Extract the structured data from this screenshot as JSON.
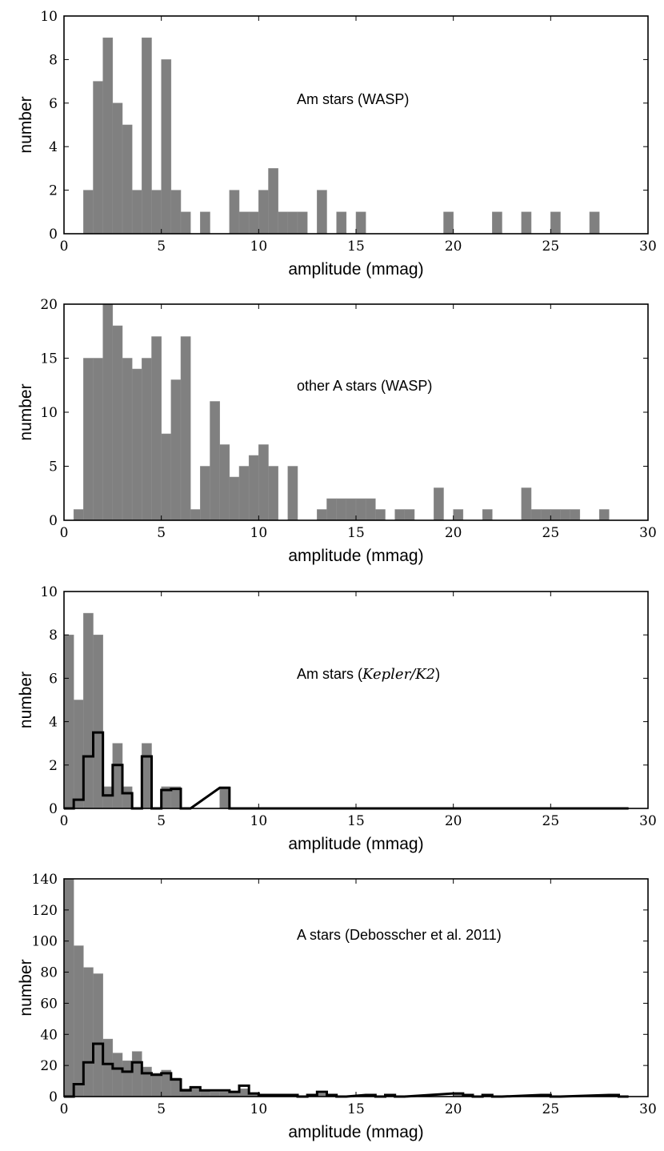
{
  "chart_data": [
    {
      "type": "bar",
      "title": "",
      "annotation": "Am stars (WASP)",
      "xlabel": "amplitude (mmag)",
      "ylabel": "number",
      "xlim": [
        0,
        30
      ],
      "ylim": [
        0,
        10
      ],
      "xticks": [
        0,
        5,
        10,
        15,
        20,
        25,
        30
      ],
      "yticks": [
        0,
        2,
        4,
        6,
        8,
        10
      ],
      "bin_width": 0.5,
      "series": [
        {
          "bins": [
            [
              1.0,
              2
            ],
            [
              1.5,
              7
            ],
            [
              2.0,
              9
            ],
            [
              2.5,
              6
            ],
            [
              3.0,
              5
            ],
            [
              3.5,
              2
            ],
            [
              4.0,
              9
            ],
            [
              4.5,
              2
            ],
            [
              5.0,
              8
            ],
            [
              5.5,
              2
            ],
            [
              6.0,
              1
            ],
            [
              7.0,
              1
            ],
            [
              8.5,
              2
            ],
            [
              9.0,
              1
            ],
            [
              9.5,
              1
            ],
            [
              10.0,
              2
            ],
            [
              10.5,
              3
            ],
            [
              11.0,
              1
            ],
            [
              11.5,
              1
            ],
            [
              12.0,
              1
            ],
            [
              13.0,
              2
            ],
            [
              14.0,
              1
            ],
            [
              15.0,
              1
            ],
            [
              19.5,
              1
            ],
            [
              22.0,
              1
            ],
            [
              23.5,
              1
            ],
            [
              25.0,
              1
            ],
            [
              27.0,
              1
            ]
          ]
        }
      ]
    },
    {
      "type": "bar",
      "title": "",
      "annotation": "other A stars (WASP)",
      "xlabel": "amplitude (mmag)",
      "ylabel": "number",
      "xlim": [
        0,
        30
      ],
      "ylim": [
        0,
        20
      ],
      "xticks": [
        0,
        5,
        10,
        15,
        20,
        25,
        30
      ],
      "yticks": [
        0,
        5,
        10,
        15,
        20
      ],
      "bin_width": 0.5,
      "series": [
        {
          "bins": [
            [
              0.5,
              1
            ],
            [
              1.0,
              15
            ],
            [
              1.5,
              15
            ],
            [
              2.0,
              20
            ],
            [
              2.5,
              18
            ],
            [
              3.0,
              15
            ],
            [
              3.5,
              14
            ],
            [
              4.0,
              15
            ],
            [
              4.5,
              17
            ],
            [
              5.0,
              8
            ],
            [
              5.5,
              13
            ],
            [
              6.0,
              17
            ],
            [
              6.5,
              1
            ],
            [
              7.0,
              5
            ],
            [
              7.5,
              11
            ],
            [
              8.0,
              7
            ],
            [
              8.5,
              4
            ],
            [
              9.0,
              5
            ],
            [
              9.5,
              6
            ],
            [
              10.0,
              7
            ],
            [
              10.5,
              5
            ],
            [
              11.5,
              5
            ],
            [
              13.0,
              1
            ],
            [
              13.5,
              2
            ],
            [
              14.0,
              2
            ],
            [
              14.5,
              2
            ],
            [
              15.0,
              2
            ],
            [
              15.5,
              2
            ],
            [
              16.0,
              1
            ],
            [
              17.0,
              1
            ],
            [
              17.5,
              1
            ],
            [
              19.0,
              3
            ],
            [
              20.0,
              1
            ],
            [
              21.5,
              1
            ],
            [
              23.5,
              3
            ],
            [
              24.0,
              1
            ],
            [
              24.5,
              1
            ],
            [
              25.0,
              1
            ],
            [
              25.5,
              1
            ],
            [
              26.0,
              1
            ],
            [
              27.5,
              1
            ]
          ]
        }
      ]
    },
    {
      "type": "bar",
      "title": "",
      "annotation_parts": [
        "Am stars (",
        "Kepler/K2",
        ")"
      ],
      "xlabel": "amplitude (mmag)",
      "ylabel": "number",
      "xlim": [
        0,
        30
      ],
      "ylim": [
        0,
        10
      ],
      "xticks": [
        0,
        5,
        10,
        15,
        20,
        25,
        30
      ],
      "yticks": [
        0,
        2,
        4,
        6,
        8,
        10
      ],
      "bin_width": 0.5,
      "series": [
        {
          "style": "filled",
          "bins": [
            [
              0.0,
              8
            ],
            [
              0.5,
              5
            ],
            [
              1.0,
              9
            ],
            [
              1.5,
              8
            ],
            [
              2.0,
              1
            ],
            [
              2.5,
              3
            ],
            [
              3.0,
              1
            ],
            [
              4.0,
              3
            ],
            [
              5.0,
              1
            ],
            [
              5.5,
              1
            ],
            [
              8.0,
              1
            ]
          ]
        },
        {
          "style": "step",
          "x_end": 29.0,
          "bins": [
            [
              0.0,
              0
            ],
            [
              0.5,
              0.4
            ],
            [
              1.0,
              2.4
            ],
            [
              1.5,
              3.5
            ],
            [
              2.0,
              0.6
            ],
            [
              2.5,
              2.0
            ],
            [
              3.0,
              0.7
            ],
            [
              3.5,
              0
            ],
            [
              4.0,
              2.4
            ],
            [
              4.5,
              0
            ],
            [
              5.0,
              0.85
            ],
            [
              5.5,
              0.9
            ],
            [
              6.0,
              0
            ],
            [
              8.0,
              0.95
            ],
            [
              8.5,
              0
            ]
          ]
        }
      ]
    },
    {
      "type": "bar",
      "title": "",
      "annotation": "A stars (Debosscher et al. 2011)",
      "xlabel": "amplitude (mmag)",
      "ylabel": "number",
      "xlim": [
        0,
        30
      ],
      "ylim": [
        0,
        140
      ],
      "xticks": [
        0,
        5,
        10,
        15,
        20,
        25,
        30
      ],
      "yticks": [
        0,
        20,
        40,
        60,
        80,
        100,
        120,
        140
      ],
      "bin_width": 0.5,
      "series": [
        {
          "style": "filled",
          "bins": [
            [
              0.0,
              140
            ],
            [
              0.5,
              97
            ],
            [
              1.0,
              83
            ],
            [
              1.5,
              79
            ],
            [
              2.0,
              37
            ],
            [
              2.5,
              28
            ],
            [
              3.0,
              23
            ],
            [
              3.5,
              29
            ],
            [
              4.0,
              19
            ],
            [
              4.5,
              15
            ],
            [
              5.0,
              17
            ],
            [
              5.5,
              12
            ],
            [
              6.0,
              5
            ],
            [
              6.5,
              5
            ],
            [
              7.0,
              4
            ],
            [
              7.5,
              3
            ],
            [
              8.0,
              3
            ],
            [
              8.5,
              3
            ],
            [
              9.0,
              5
            ],
            [
              9.5,
              2
            ],
            [
              10.0,
              1
            ],
            [
              10.5,
              1
            ],
            [
              11.0,
              1
            ],
            [
              11.5,
              1
            ],
            [
              12.5,
              1
            ],
            [
              13.0,
              2
            ],
            [
              13.5,
              1
            ],
            [
              15.5,
              1
            ],
            [
              16.5,
              1
            ],
            [
              20.0,
              2
            ],
            [
              20.5,
              1
            ],
            [
              21.5,
              1
            ],
            [
              24.5,
              1
            ],
            [
              28.0,
              1
            ]
          ]
        },
        {
          "style": "step",
          "x_end": 29.0,
          "bins": [
            [
              0.0,
              0
            ],
            [
              0.5,
              8
            ],
            [
              1.0,
              22
            ],
            [
              1.5,
              34
            ],
            [
              2.0,
              21
            ],
            [
              2.5,
              18
            ],
            [
              3.0,
              16
            ],
            [
              3.5,
              22
            ],
            [
              4.0,
              15
            ],
            [
              4.5,
              14
            ],
            [
              5.0,
              15
            ],
            [
              5.5,
              11
            ],
            [
              6.0,
              4
            ],
            [
              6.5,
              6
            ],
            [
              7.0,
              4
            ],
            [
              7.5,
              4
            ],
            [
              8.0,
              4
            ],
            [
              8.5,
              3
            ],
            [
              9.0,
              7
            ],
            [
              9.5,
              2
            ],
            [
              10.0,
              1
            ],
            [
              10.5,
              1
            ],
            [
              11.0,
              1
            ],
            [
              11.5,
              1
            ],
            [
              12.0,
              0
            ],
            [
              12.5,
              1
            ],
            [
              13.0,
              3
            ],
            [
              13.5,
              1
            ],
            [
              14.0,
              0
            ],
            [
              15.5,
              1
            ],
            [
              16.0,
              0
            ],
            [
              16.5,
              1
            ],
            [
              17.0,
              0
            ],
            [
              20.0,
              2
            ],
            [
              20.5,
              1
            ],
            [
              21.0,
              0
            ],
            [
              21.5,
              1
            ],
            [
              22.0,
              0
            ],
            [
              24.5,
              1
            ],
            [
              25.0,
              0
            ],
            [
              28.0,
              1
            ],
            [
              28.5,
              0
            ]
          ]
        }
      ]
    }
  ]
}
